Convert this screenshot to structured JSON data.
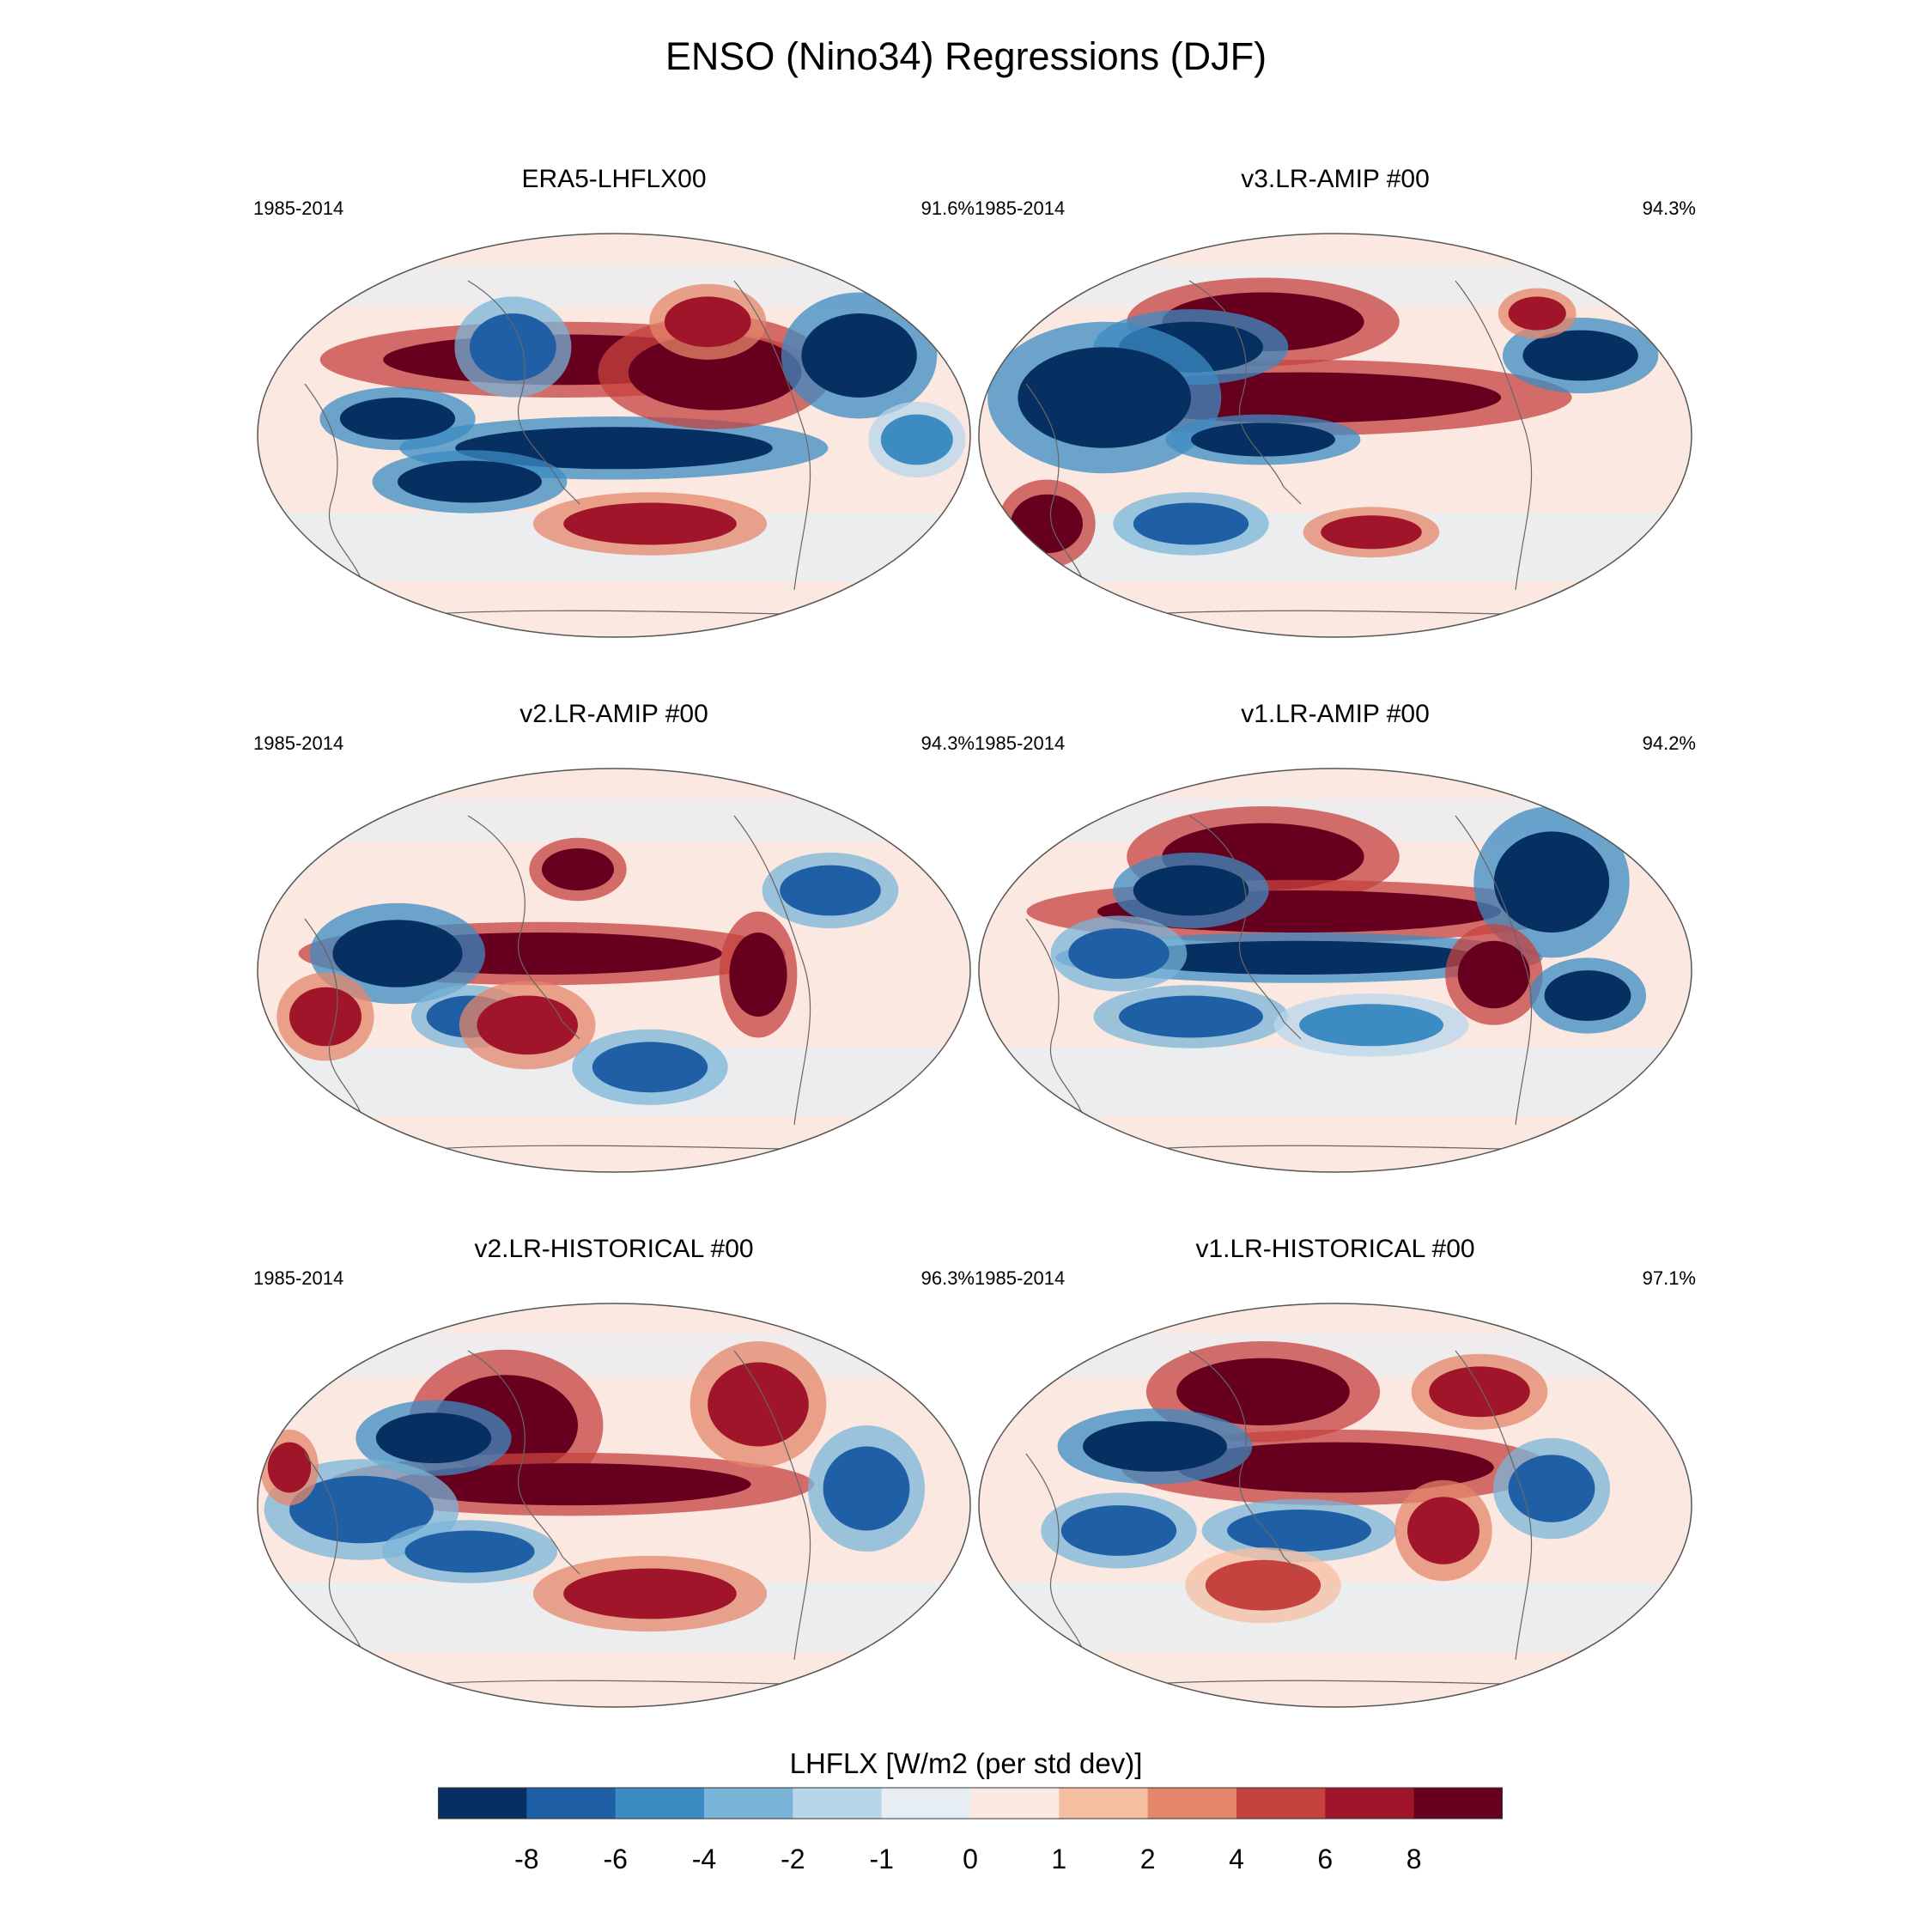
{
  "title": "ENSO (Nino34) Regressions (DJF)",
  "chart_data": [
    {
      "type": "heatmap",
      "title": "ERA5-LHFLX00",
      "period": "1985-2014",
      "percent": "91.6%"
    },
    {
      "type": "heatmap",
      "title": "v3.LR-AMIP  #00",
      "period": "1985-2014",
      "percent": "94.3%"
    },
    {
      "type": "heatmap",
      "title": "v2.LR-AMIP  #00",
      "period": "1985-2014",
      "percent": "94.3%"
    },
    {
      "type": "heatmap",
      "title": "v1.LR-AMIP  #00",
      "period": "1985-2014",
      "percent": "94.2%"
    },
    {
      "type": "heatmap",
      "title": "v2.LR-HISTORICAL  #00",
      "period": "1985-2014",
      "percent": "96.3%"
    },
    {
      "type": "heatmap",
      "title": "v1.LR-HISTORICAL  #00",
      "period": "1985-2014",
      "percent": "97.1%"
    }
  ],
  "colorbar": {
    "label": "LHFLX [W/m2 (per std dev)]",
    "ticks": [
      "-8",
      "-6",
      "-4",
      "-2",
      "-1",
      "0",
      "1",
      "2",
      "4",
      "6",
      "8"
    ],
    "colors": [
      "#053061",
      "#1f5fa6",
      "#3c8bc3",
      "#7ab4d8",
      "#b8d6e9",
      "#e6eef4",
      "#fbe9e1",
      "#f6bea1",
      "#e48669",
      "#c5423f",
      "#a1152b",
      "#67001f"
    ]
  }
}
